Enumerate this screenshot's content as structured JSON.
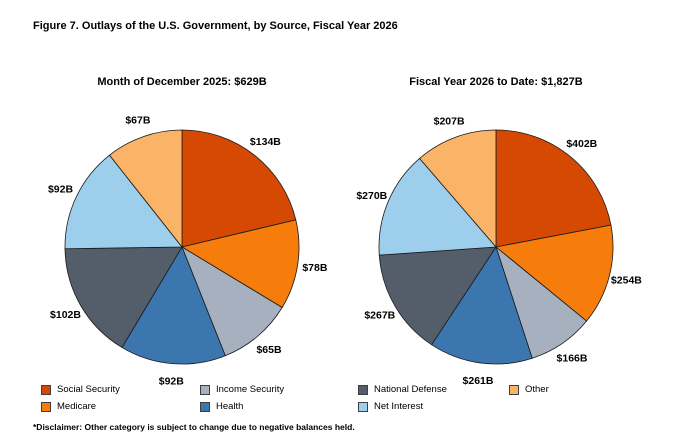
{
  "page": {
    "title": "Figure 7. Outlays of the U.S. Government, by Source, Fiscal Year 2026",
    "footnote": "*Disclaimer: Other category is subject to change due to negative balances held."
  },
  "palette": {
    "Social Security": "#D54903",
    "Medicare": "#F67D0B",
    "Income Security": "#A6B0BE",
    "Health": "#3C76AE",
    "National Defense": "#545E6A",
    "Net Interest": "#9DCEEB",
    "Other": "#FBB367"
  },
  "legend": {
    "items": [
      {
        "label": "Social Security",
        "color": "#D54903",
        "col": 0,
        "row": 0
      },
      {
        "label": "Medicare",
        "color": "#F67D0B",
        "col": 0,
        "row": 1
      },
      {
        "label": "Income Security",
        "color": "#A6B0BE",
        "col": 1,
        "row": 0
      },
      {
        "label": "Health",
        "color": "#3C76AE",
        "col": 1,
        "row": 1
      },
      {
        "label": "National Defense",
        "color": "#545E6A",
        "col": 2,
        "row": 0
      },
      {
        "label": "Net Interest",
        "color": "#9DCEEB",
        "col": 2,
        "row": 1
      },
      {
        "label": "Other",
        "color": "#FBB367",
        "col": 3,
        "row": 0
      }
    ]
  },
  "chart_data": [
    {
      "type": "pie",
      "title": "Month of December 2025: $629B",
      "total_label": "$629B",
      "total": 629,
      "unit": "billions USD",
      "start_angle": "12-oclock",
      "direction": "clockwise",
      "legend_position": "bottom",
      "categories": [
        "Social Security",
        "Medicare",
        "Income Security",
        "Health",
        "National Defense",
        "Net Interest",
        "Other"
      ],
      "values": [
        134,
        78,
        65,
        92,
        102,
        92,
        67
      ],
      "labels": [
        "$134B",
        "$78B",
        "$65B",
        "$92B",
        "$102B",
        "$92B",
        "$67B"
      ]
    },
    {
      "type": "pie",
      "title": "Fiscal Year 2026 to Date: $1,827B",
      "total_label": "$1,827B",
      "total": 1827,
      "unit": "billions USD",
      "start_angle": "12-oclock",
      "direction": "clockwise",
      "legend_position": "bottom",
      "categories": [
        "Social Security",
        "Medicare",
        "Income Security",
        "Health",
        "National Defense",
        "Net Interest",
        "Other"
      ],
      "values": [
        402,
        254,
        166,
        261,
        267,
        270,
        207
      ],
      "labels": [
        "$402B",
        "$254B",
        "$166B",
        "$261B",
        "$267B",
        "$270B",
        "$207B"
      ]
    }
  ]
}
